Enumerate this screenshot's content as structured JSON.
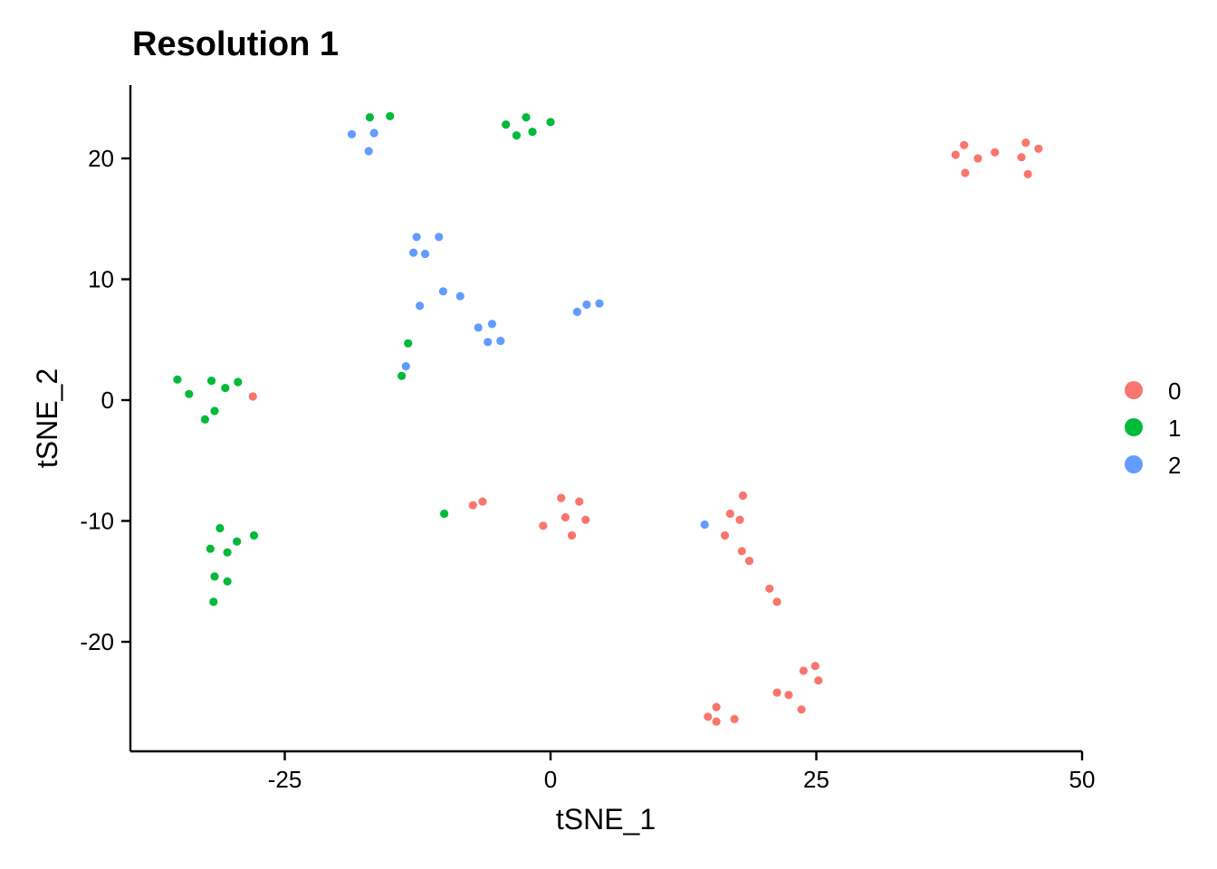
{
  "chart_data": {
    "type": "scatter",
    "title": "Resolution 1",
    "xlabel": "tSNE_1",
    "ylabel": "tSNE_2",
    "xlim": [
      -39,
      50
    ],
    "ylim": [
      -29,
      26
    ],
    "xticks": [
      -25,
      0,
      25,
      50
    ],
    "xtick_labels": [
      "-25",
      "0",
      "25",
      "50"
    ],
    "yticks": [
      -20,
      -10,
      0,
      10,
      20
    ],
    "ytick_labels": [
      "-20",
      "-10",
      "0",
      "10",
      "20"
    ],
    "grid": false,
    "legend": {
      "position": "right",
      "entries": [
        "0",
        "1",
        "2"
      ]
    },
    "colors": {
      "0": "#F8766D",
      "1": "#00BA38",
      "2": "#619CFF"
    },
    "series": [
      {
        "name": "0",
        "color": "#F8766D",
        "points": [
          [
            38.1,
            20.3
          ],
          [
            38.9,
            21.1
          ],
          [
            40.2,
            20.0
          ],
          [
            41.8,
            20.5
          ],
          [
            44.3,
            20.1
          ],
          [
            44.7,
            21.3
          ],
          [
            45.9,
            20.8
          ],
          [
            39.0,
            18.8
          ],
          [
            44.9,
            18.7
          ],
          [
            -28.0,
            0.3
          ],
          [
            -7.3,
            -8.7
          ],
          [
            -6.4,
            -8.4
          ],
          [
            -0.7,
            -10.4
          ],
          [
            1.0,
            -8.1
          ],
          [
            1.4,
            -9.7
          ],
          [
            2.0,
            -11.2
          ],
          [
            2.7,
            -8.4
          ],
          [
            3.3,
            -9.9
          ],
          [
            16.9,
            -9.4
          ],
          [
            17.8,
            -9.9
          ],
          [
            18.1,
            -7.9
          ],
          [
            16.4,
            -11.2
          ],
          [
            18.0,
            -12.5
          ],
          [
            18.7,
            -13.3
          ],
          [
            20.6,
            -15.6
          ],
          [
            21.3,
            -16.7
          ],
          [
            24.9,
            -22.0
          ],
          [
            23.8,
            -22.4
          ],
          [
            25.2,
            -23.2
          ],
          [
            21.3,
            -24.2
          ],
          [
            22.4,
            -24.4
          ],
          [
            23.6,
            -25.6
          ],
          [
            14.8,
            -26.2
          ],
          [
            15.6,
            -25.4
          ],
          [
            15.6,
            -26.6
          ],
          [
            17.3,
            -26.4
          ]
        ]
      },
      {
        "name": "1",
        "color": "#00BA38",
        "points": [
          [
            -17.0,
            23.4
          ],
          [
            -15.1,
            23.5
          ],
          [
            -4.2,
            22.8
          ],
          [
            -3.2,
            21.9
          ],
          [
            -2.3,
            23.4
          ],
          [
            -1.7,
            22.2
          ],
          [
            0.0,
            23.0
          ],
          [
            -35.1,
            1.7
          ],
          [
            -34.0,
            0.5
          ],
          [
            -31.9,
            1.6
          ],
          [
            -30.6,
            1.0
          ],
          [
            -29.4,
            1.5
          ],
          [
            -32.5,
            -1.6
          ],
          [
            -31.6,
            -0.9
          ],
          [
            -13.4,
            4.7
          ],
          [
            -14.0,
            2.0
          ],
          [
            -31.1,
            -10.6
          ],
          [
            -32.0,
            -12.3
          ],
          [
            -30.4,
            -12.6
          ],
          [
            -29.5,
            -11.7
          ],
          [
            -27.9,
            -11.2
          ],
          [
            -31.6,
            -14.6
          ],
          [
            -30.4,
            -15.0
          ],
          [
            -31.7,
            -16.7
          ],
          [
            -10.0,
            -9.4
          ]
        ]
      },
      {
        "name": "2",
        "color": "#619CFF",
        "points": [
          [
            -18.7,
            22.0
          ],
          [
            -16.6,
            22.1
          ],
          [
            -17.1,
            20.6
          ],
          [
            -12.6,
            13.5
          ],
          [
            -10.5,
            13.5
          ],
          [
            -12.9,
            12.2
          ],
          [
            -11.8,
            12.1
          ],
          [
            -10.1,
            9.0
          ],
          [
            -8.5,
            8.6
          ],
          [
            -12.3,
            7.8
          ],
          [
            -6.8,
            6.0
          ],
          [
            -5.5,
            6.3
          ],
          [
            -5.9,
            4.8
          ],
          [
            -4.7,
            4.9
          ],
          [
            2.5,
            7.3
          ],
          [
            3.4,
            7.9
          ],
          [
            4.6,
            8.0
          ],
          [
            -13.6,
            2.8
          ],
          [
            14.5,
            -10.3
          ]
        ]
      }
    ]
  }
}
